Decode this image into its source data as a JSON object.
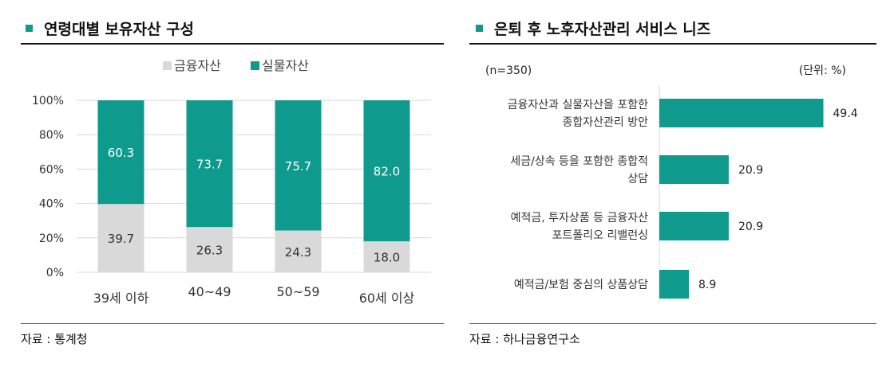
{
  "left": {
    "title": "연령대별 보유자산 구성",
    "source": "자료 : 통계청",
    "chart_data": {
      "type": "bar",
      "stacked": true,
      "categories": [
        "39세 이하",
        "40~49",
        "50~59",
        "60세 이상"
      ],
      "series": [
        {
          "name": "금융자산",
          "values": [
            39.7,
            26.3,
            24.3,
            18.0
          ],
          "labels": [
            "39.7",
            "26.3",
            "24.3",
            "18.0"
          ],
          "color": "#d9d9d9"
        },
        {
          "name": "실물자산",
          "values": [
            60.3,
            73.7,
            75.7,
            82.0
          ],
          "labels": [
            "60.3",
            "73.7",
            "75.7",
            "82.0"
          ],
          "color": "#0f9a8e"
        }
      ],
      "yticks": [
        "0%",
        "20%",
        "40%",
        "60%",
        "80%",
        "100%"
      ],
      "ylim": [
        0,
        100
      ],
      "grid": true,
      "legend": "top"
    }
  },
  "right": {
    "title": "은퇴 후 노후자산관리 서비스 니즈",
    "sample": "(n=350)",
    "unit": "(단위: %)",
    "source": "자료 : 하나금융연구소",
    "chart_data": {
      "type": "bar",
      "orientation": "horizontal",
      "categories": [
        [
          "금융자산과 실물자산을 포함한",
          "종합자산관리 방안"
        ],
        [
          "세금/상속 등을 포함한 종합적",
          "상담"
        ],
        [
          "예적금, 투자상품 등 금융자산",
          "포트폴리오 리밸런싱"
        ],
        [
          "예적금/보험 중심의 상품상담"
        ]
      ],
      "values": [
        49.4,
        20.9,
        20.9,
        8.9
      ],
      "labels": [
        "49.4",
        "20.9",
        "20.9",
        "8.9"
      ],
      "color": "#0f9a8e",
      "xlim": [
        0,
        50
      ]
    }
  }
}
